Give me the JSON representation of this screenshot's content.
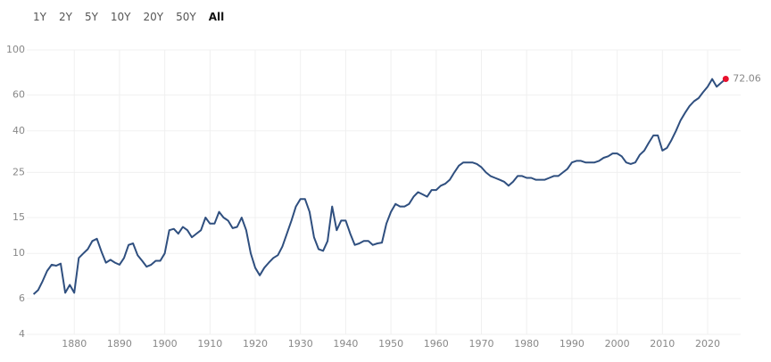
{
  "range_buttons": [
    "1Y",
    "2Y",
    "5Y",
    "10Y",
    "20Y",
    "50Y",
    "All"
  ],
  "selected_range": 6,
  "chart_data": {
    "type": "line",
    "log_scale": true,
    "grid": true,
    "annotation": "72.06",
    "xlim": [
      1869.5,
      2027.3
    ],
    "xticks": [
      1880,
      1890,
      1900,
      1910,
      1920,
      1930,
      1940,
      1950,
      1960,
      1970,
      1980,
      1990,
      2000,
      2010,
      2020
    ],
    "ylim": [
      4,
      100
    ],
    "yticks": [
      4,
      6,
      10,
      15,
      25,
      40,
      60,
      100
    ],
    "series": [
      {
        "color": "#2f4f7f",
        "end_color": "#e8112d",
        "x": [
          1871,
          1872,
          1873,
          1874,
          1875,
          1876,
          1877,
          1878,
          1879,
          1880,
          1881,
          1882,
          1883,
          1884,
          1885,
          1886,
          1887,
          1888,
          1889,
          1890,
          1891,
          1892,
          1893,
          1894,
          1895,
          1896,
          1897,
          1898,
          1899,
          1900,
          1901,
          1902,
          1903,
          1904,
          1905,
          1906,
          1907,
          1908,
          1909,
          1910,
          1911,
          1912,
          1913,
          1914,
          1915,
          1916,
          1917,
          1918,
          1919,
          1920,
          1921,
          1922,
          1923,
          1924,
          1925,
          1926,
          1927,
          1928,
          1929,
          1930,
          1931,
          1932,
          1933,
          1934,
          1935,
          1936,
          1937,
          1938,
          1939,
          1940,
          1941,
          1942,
          1943,
          1944,
          1945,
          1946,
          1947,
          1948,
          1949,
          1950,
          1951,
          1952,
          1953,
          1954,
          1955,
          1956,
          1957,
          1958,
          1959,
          1960,
          1961,
          1962,
          1963,
          1964,
          1965,
          1966,
          1967,
          1968,
          1969,
          1970,
          1971,
          1972,
          1973,
          1974,
          1975,
          1976,
          1977,
          1978,
          1979,
          1980,
          1981,
          1982,
          1983,
          1984,
          1985,
          1986,
          1987,
          1988,
          1989,
          1990,
          1991,
          1992,
          1993,
          1994,
          1995,
          1996,
          1997,
          1998,
          1999,
          2000,
          2001,
          2002,
          2003,
          2004,
          2005,
          2006,
          2007,
          2008,
          2009,
          2010,
          2011,
          2012,
          2013,
          2014,
          2015,
          2016,
          2017,
          2018,
          2019,
          2020,
          2021,
          2022,
          2023,
          2024
        ],
        "values": [
          6.3,
          6.6,
          7.3,
          8.2,
          8.8,
          8.7,
          8.9,
          6.4,
          7.0,
          6.4,
          9.5,
          10,
          10.5,
          11.5,
          11.8,
          10.2,
          9,
          9.3,
          9,
          8.8,
          9.5,
          11,
          11.2,
          9.8,
          9.2,
          8.6,
          8.8,
          9.2,
          9.2,
          10,
          13,
          13.2,
          12.5,
          13.5,
          13,
          12,
          12.5,
          13,
          15,
          14,
          14,
          16,
          15,
          14.5,
          13.3,
          13.5,
          15,
          13,
          10,
          8.5,
          7.8,
          8.5,
          9,
          9.5,
          9.8,
          10.8,
          12.5,
          14.5,
          17,
          18.5,
          18.5,
          16,
          12,
          10.5,
          10.3,
          11.5,
          17,
          13,
          14.5,
          14.5,
          12.5,
          11,
          11.2,
          11.5,
          11.5,
          11,
          11.2,
          11.3,
          14,
          16,
          17.5,
          17,
          17,
          17.5,
          19,
          20,
          19.5,
          19,
          20.5,
          20.5,
          21.5,
          22,
          23,
          25,
          27,
          28,
          28,
          28,
          27.5,
          26.5,
          25,
          24,
          23.5,
          23,
          22.5,
          21.5,
          22.5,
          24,
          24,
          23.5,
          23.5,
          23,
          23,
          23,
          23.5,
          24,
          24,
          25,
          26,
          28,
          28.5,
          28.5,
          28,
          28,
          28,
          28.5,
          29.5,
          30,
          31,
          31,
          30,
          28,
          27.5,
          28,
          30.5,
          32,
          35,
          38,
          38,
          32,
          33,
          36,
          40,
          45,
          49,
          53,
          56,
          58,
          62,
          66,
          72,
          66,
          69,
          72.06
        ]
      }
    ]
  }
}
